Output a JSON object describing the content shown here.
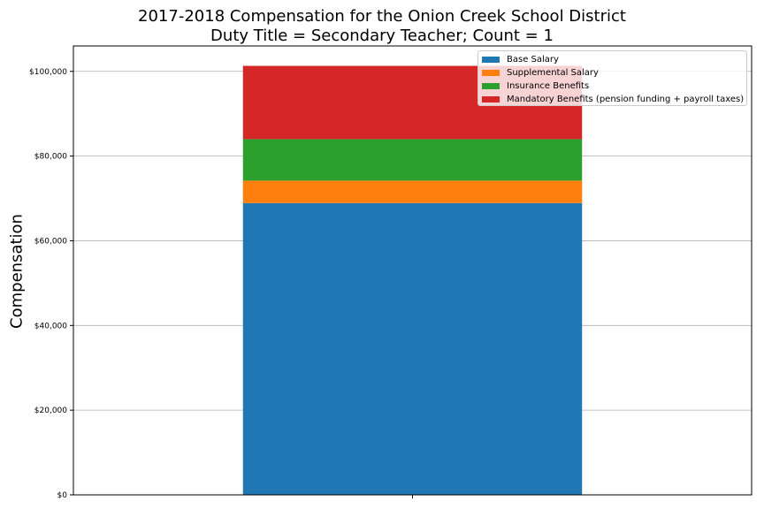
{
  "chart_data": {
    "type": "bar",
    "title": "2017-2018 Compensation for the Onion Creek School District",
    "subtitle": "Duty Title = Secondary Teacher; Count = 1",
    "xlabel": "",
    "ylabel": "Compensation",
    "categories": [
      ""
    ],
    "stacked": true,
    "ylim": [
      0,
      106000
    ],
    "yticks": [
      0,
      20000,
      40000,
      60000,
      80000,
      100000
    ],
    "ytick_labels": [
      "$0",
      "$20,000",
      "$40,000",
      "$60,000",
      "$80,000",
      "$100,000"
    ],
    "grid": "horizontal",
    "legend_position": "top-right",
    "series": [
      {
        "name": "Base Salary",
        "values": [
          68900
        ],
        "color": "#1f77b4"
      },
      {
        "name": "Supplemental Salary",
        "values": [
          5300
        ],
        "color": "#ff7f0e"
      },
      {
        "name": "Insurance Benefits",
        "values": [
          9800
        ],
        "color": "#2ca02c"
      },
      {
        "name": "Mandatory Benefits (pension funding + payroll taxes)",
        "values": [
          17300
        ],
        "color": "#d62728"
      }
    ]
  }
}
